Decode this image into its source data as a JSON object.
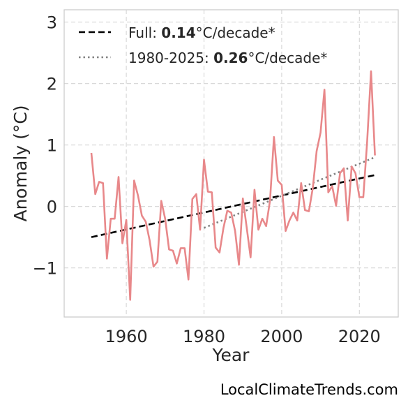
{
  "chart_data": {
    "type": "line",
    "xlabel": "Year",
    "ylabel": "Anomaly (°C)",
    "xlim": [
      1944,
      2030
    ],
    "ylim": [
      -1.8,
      3.2
    ],
    "xticks": [
      1960,
      1980,
      2000,
      2020
    ],
    "yticks": [
      -1,
      0,
      1,
      2,
      3
    ],
    "ytick_labels": [
      "−1",
      "0",
      "1",
      "2",
      "3"
    ],
    "grid": true,
    "legend_position": "top-left",
    "x": [
      1951,
      1952,
      1953,
      1954,
      1955,
      1956,
      1957,
      1958,
      1959,
      1960,
      1961,
      1962,
      1963,
      1964,
      1965,
      1966,
      1967,
      1968,
      1969,
      1970,
      1971,
      1972,
      1973,
      1974,
      1975,
      1976,
      1977,
      1978,
      1979,
      1980,
      1981,
      1982,
      1983,
      1984,
      1985,
      1986,
      1987,
      1988,
      1989,
      1990,
      1991,
      1992,
      1993,
      1994,
      1995,
      1996,
      1997,
      1998,
      1999,
      2000,
      2001,
      2002,
      2003,
      2004,
      2005,
      2006,
      2007,
      2008,
      2009,
      2010,
      2011,
      2012,
      2013,
      2014,
      2015,
      2016,
      2017,
      2018,
      2019,
      2020,
      2021,
      2022,
      2023,
      2024
    ],
    "series": [
      {
        "color": "#e8888a",
        "values": [
          0.87,
          0.2,
          0.4,
          0.38,
          -0.85,
          -0.2,
          -0.2,
          0.48,
          -0.6,
          -0.22,
          -1.52,
          0.42,
          0.18,
          -0.15,
          -0.25,
          -0.55,
          -0.98,
          -0.9,
          0.09,
          -0.2,
          -0.7,
          -0.72,
          -0.93,
          -0.68,
          -0.68,
          -1.19,
          0.12,
          0.2,
          -0.38,
          0.76,
          0.24,
          0.23,
          -0.67,
          -0.75,
          -0.35,
          -0.07,
          -0.1,
          -0.4,
          -0.95,
          0.13,
          -0.35,
          -0.83,
          0.27,
          -0.38,
          -0.2,
          -0.32,
          0.1,
          1.13,
          0.42,
          0.35,
          -0.4,
          -0.23,
          -0.1,
          -0.23,
          0.38,
          -0.06,
          -0.08,
          0.3,
          0.9,
          1.2,
          1.9,
          0.23,
          0.33,
          0.01,
          0.54,
          0.62,
          -0.23,
          0.65,
          0.54,
          0.15,
          0.15,
          1.05,
          2.2,
          0.83
        ]
      }
    ],
    "trends": [
      {
        "label_prefix": "Full: ",
        "label_value": "0.14",
        "label_suffix": "°C/decade*",
        "style": "dashed",
        "color": "#000000",
        "x": [
          1951,
          2024
        ],
        "y": [
          -0.5,
          0.51
        ]
      },
      {
        "label_prefix": "1980-2025: ",
        "label_value": "0.26",
        "label_suffix": "°C/decade*",
        "style": "dotted",
        "color": "#808080",
        "x": [
          1980,
          2024
        ],
        "y": [
          -0.35,
          0.8
        ]
      }
    ]
  },
  "credit": "LocalClimateTrends.com"
}
